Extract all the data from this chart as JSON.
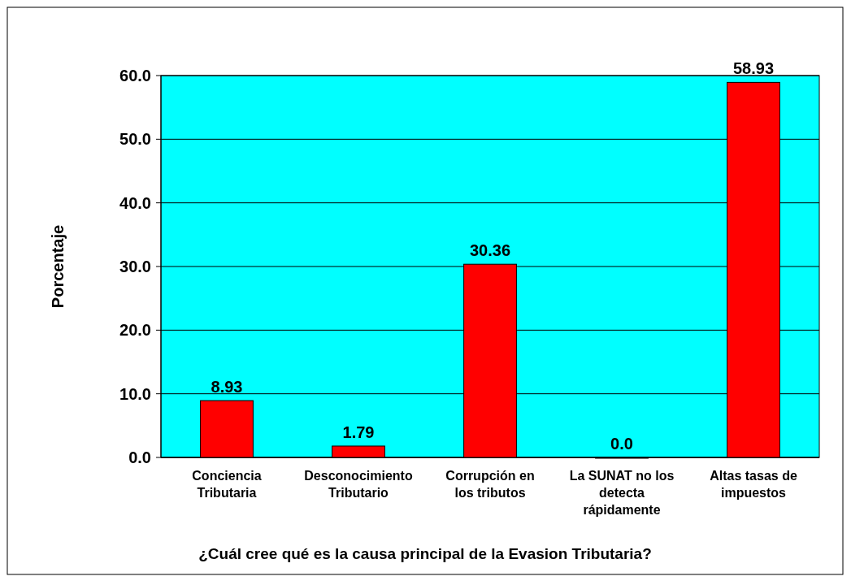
{
  "chart_data": {
    "type": "bar",
    "xlabel": "¿Cuál cree qué es la causa principal de la Evasion Tributaria?",
    "ylabel": "Porcentaje",
    "categories": [
      "Conciencia Tributaria",
      "Desconocimiento Tributario",
      "Corrupción en los tributos",
      "La SUNAT no los detecta rápidamente",
      "Altas tasas de impuestos"
    ],
    "values": [
      8.93,
      1.79,
      30.36,
      0,
      58.93
    ],
    "value_labels": [
      "8.93",
      "1.79",
      "30.36",
      "0.0",
      "58.93"
    ],
    "color": "#ff0000",
    "ylim": [
      0,
      60
    ],
    "yticks": [
      {
        "value": 0,
        "label": "0.0"
      },
      {
        "value": 10,
        "label": "10.0"
      },
      {
        "value": 20,
        "label": "20.0"
      },
      {
        "value": 30,
        "label": "30.0"
      },
      {
        "value": 40,
        "label": "40.0"
      },
      {
        "value": 50,
        "label": "50.0"
      },
      {
        "value": 60,
        "label": "60.0"
      }
    ],
    "grid": "y"
  }
}
